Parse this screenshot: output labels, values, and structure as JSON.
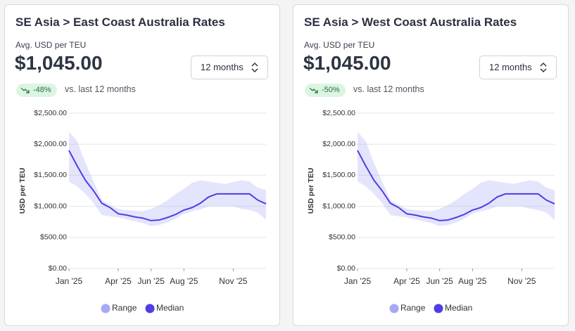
{
  "cards": [
    {
      "title": "SE Asia > East Coast Australia Rates",
      "subtitle": "Avg. USD per TEU",
      "price": "$1,045.00",
      "select": "12 months",
      "change": "-48%",
      "compare": "vs. last 12 months"
    },
    {
      "title": "SE Asia > West Coast Australia Rates",
      "subtitle": "Avg. USD per TEU",
      "price": "$1,045.00",
      "select": "12 months",
      "change": "-50%",
      "compare": "vs. last 12 months"
    }
  ],
  "chart_data": [
    {
      "type": "line",
      "ylabel": "USD per TEU",
      "x": [
        0,
        0.5,
        1,
        1.5,
        2,
        2.5,
        3,
        3.5,
        4,
        4.5,
        5,
        5.5,
        6,
        6.5,
        7,
        7.5,
        8,
        8.5,
        9,
        9.5,
        10,
        10.5,
        11,
        11.5,
        12
      ],
      "xlim": [
        0,
        12
      ],
      "xticks": [
        {
          "value": 0,
          "label": "Jan '25"
        },
        {
          "value": 3,
          "label": "Apr '25"
        },
        {
          "value": 5,
          "label": "Jun '25"
        },
        {
          "value": 7,
          "label": "Aug '25"
        },
        {
          "value": 10,
          "label": "Nov '25"
        }
      ],
      "ylim": [
        0,
        2500
      ],
      "yticks": [
        {
          "value": 0,
          "label": "$0.00"
        },
        {
          "value": 500,
          "label": "$500.00"
        },
        {
          "value": 1000,
          "label": "$1,000.00"
        },
        {
          "value": 1500,
          "label": "$1,500.00"
        },
        {
          "value": 2000,
          "label": "$2,000.00"
        },
        {
          "value": 2500,
          "label": "$2,500.00"
        }
      ],
      "grid": true,
      "series": [
        {
          "name": "Range",
          "color": "#a6a9f6",
          "upper": [
            2200,
            2050,
            1700,
            1400,
            1100,
            1020,
            960,
            940,
            930,
            920,
            960,
            1020,
            1100,
            1200,
            1280,
            1380,
            1420,
            1400,
            1380,
            1360,
            1390,
            1420,
            1400,
            1300,
            1260
          ],
          "lower": [
            1400,
            1320,
            1200,
            1050,
            860,
            840,
            820,
            790,
            760,
            730,
            680,
            700,
            740,
            800,
            880,
            920,
            950,
            1000,
            1000,
            1000,
            1000,
            960,
            940,
            900,
            780
          ]
        },
        {
          "name": "Median",
          "color": "#4f3de8",
          "values": [
            1900,
            1650,
            1420,
            1250,
            1050,
            980,
            880,
            860,
            830,
            810,
            770,
            780,
            820,
            870,
            940,
            980,
            1050,
            1150,
            1200,
            1200,
            1200,
            1200,
            1200,
            1100,
            1040
          ]
        }
      ]
    },
    {
      "type": "line",
      "ylabel": "USD per TEU",
      "x": [
        0,
        0.5,
        1,
        1.5,
        2,
        2.5,
        3,
        3.5,
        4,
        4.5,
        5,
        5.5,
        6,
        6.5,
        7,
        7.5,
        8,
        8.5,
        9,
        9.5,
        10,
        10.5,
        11,
        11.5,
        12
      ],
      "xlim": [
        0,
        12
      ],
      "xticks": [
        {
          "value": 0,
          "label": "Jan '25"
        },
        {
          "value": 3,
          "label": "Apr '25"
        },
        {
          "value": 5,
          "label": "Jun '25"
        },
        {
          "value": 7,
          "label": "Aug '25"
        },
        {
          "value": 10,
          "label": "Nov '25"
        }
      ],
      "ylim": [
        0,
        2500
      ],
      "yticks": [
        {
          "value": 0,
          "label": "$0.00"
        },
        {
          "value": 500,
          "label": "$500.00"
        },
        {
          "value": 1000,
          "label": "$1,000.00"
        },
        {
          "value": 1500,
          "label": "$1,500.00"
        },
        {
          "value": 2000,
          "label": "$2,000.00"
        },
        {
          "value": 2500,
          "label": "$2,500.00"
        }
      ],
      "grid": true,
      "series": [
        {
          "name": "Range",
          "color": "#a6a9f6",
          "upper": [
            2200,
            2050,
            1700,
            1400,
            1100,
            1020,
            960,
            940,
            930,
            920,
            960,
            1020,
            1100,
            1200,
            1280,
            1380,
            1420,
            1400,
            1380,
            1360,
            1390,
            1420,
            1400,
            1300,
            1260
          ],
          "lower": [
            1400,
            1320,
            1200,
            1050,
            860,
            840,
            820,
            790,
            760,
            730,
            680,
            700,
            740,
            800,
            880,
            920,
            950,
            1000,
            1000,
            1000,
            1000,
            960,
            940,
            900,
            780
          ]
        },
        {
          "name": "Median",
          "color": "#4f3de8",
          "values": [
            1900,
            1650,
            1420,
            1250,
            1050,
            980,
            880,
            860,
            830,
            810,
            770,
            780,
            820,
            870,
            940,
            980,
            1050,
            1150,
            1200,
            1200,
            1200,
            1200,
            1200,
            1100,
            1040
          ]
        }
      ]
    }
  ]
}
